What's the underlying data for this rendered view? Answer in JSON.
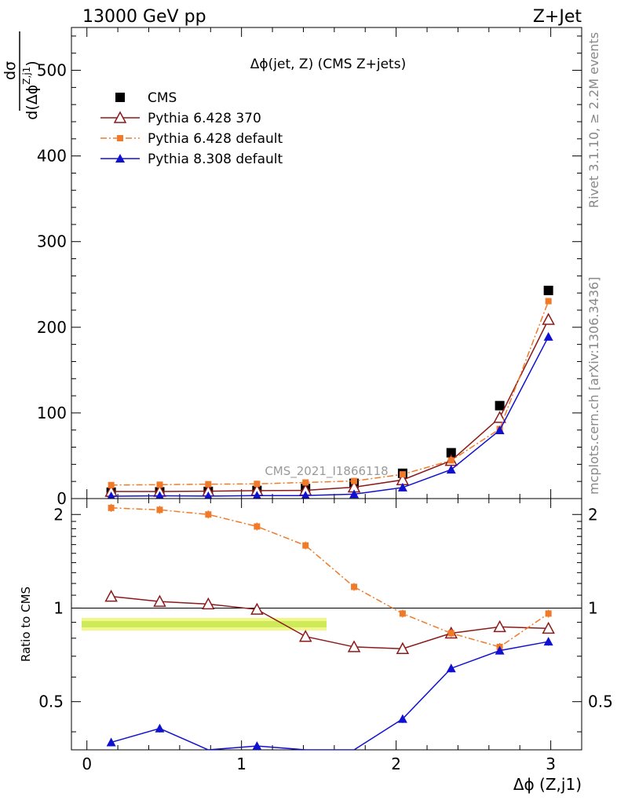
{
  "header": {
    "left": "13000 GeV pp",
    "right": "Z+Jet"
  },
  "side_labels": {
    "rivet": "Rivet 3.1.10, ≥ 2.2M events",
    "mcplots": "mcplots.cern.ch [arXiv:1306.3436]"
  },
  "watermark": "CMS_2021_I1866118",
  "chart_data": [
    {
      "type": "line",
      "panel": "main",
      "title": "Δϕ(jet, Z) (CMS Z+jets)",
      "ylabel_num": "dσ",
      "ylabel_den": "d(Δϕ",
      "ylabel_sup": "Z,j1",
      "ylabel_close": ")",
      "xlim": [
        -0.1,
        3.2
      ],
      "ylim": [
        0,
        550
      ],
      "yticks": [
        0,
        100,
        200,
        300,
        400,
        500
      ],
      "ytick_labels": [
        "0",
        "100",
        "200",
        "300",
        "400",
        "500"
      ],
      "grid": false,
      "legend_position": "top-left",
      "x": [
        0.157,
        0.471,
        0.785,
        1.1,
        1.414,
        1.728,
        2.042,
        2.356,
        2.67,
        2.985
      ],
      "series": [
        {
          "name": "CMS",
          "color": "#000000",
          "marker": "square",
          "values": [
            7.5,
            7.9,
            8.4,
            9.5,
            11.8,
            17.8,
            29.5,
            53.5,
            108.5,
            243
          ]
        },
        {
          "name": "Pythia 6.428 370",
          "color": "#8b1a1a",
          "marker": "open-triangle",
          "values": [
            8.2,
            8.3,
            8.6,
            9.3,
            9.6,
            13.3,
            21.8,
            44.3,
            94.5,
            209
          ]
        },
        {
          "name": "Pythia 6.428 default",
          "color": "#f07a28",
          "marker": "small-square",
          "values": [
            15.8,
            16.2,
            16.8,
            17.2,
            18.8,
            20.5,
            28.3,
            44.5,
            81.2,
            230.5
          ]
        },
        {
          "name": "Pythia 8.308 default",
          "color": "#1010d0",
          "marker": "triangle",
          "values": [
            2.8,
            3.2,
            2.9,
            3.4,
            3.5,
            5.2,
            12.9,
            33.8,
            79.8,
            189
          ]
        }
      ]
    },
    {
      "type": "line",
      "panel": "ratio",
      "ylabel": "Ratio to CMS",
      "xlabel": "Δϕ (Z,j1)",
      "xlim": [
        -0.1,
        3.2
      ],
      "ylim": [
        0.35,
        2.25
      ],
      "xticks": [
        0,
        1,
        2,
        3
      ],
      "xtick_labels": [
        "0",
        "1",
        "2",
        "3"
      ],
      "yticks": [
        0.5,
        1,
        2
      ],
      "ytick_labels": [
        "0.5",
        "1",
        "2"
      ],
      "reference_line": 1,
      "x": [
        0.157,
        0.471,
        0.785,
        1.1,
        1.414,
        1.728,
        2.042,
        2.356,
        2.67,
        2.985
      ],
      "series": [
        {
          "name": "Pythia 6.428 370",
          "color": "#8b1a1a",
          "marker": "open-triangle",
          "values": [
            1.09,
            1.05,
            1.03,
            0.99,
            0.81,
            0.75,
            0.74,
            0.83,
            0.87,
            0.86
          ]
        },
        {
          "name": "Pythia 6.428 default",
          "color": "#f07a28",
          "marker": "small-square",
          "values": [
            2.1,
            2.07,
            2.0,
            1.83,
            1.59,
            1.17,
            0.96,
            0.83,
            0.75,
            0.96
          ]
        },
        {
          "name": "Pythia 8.308 default",
          "color": "#1010d0",
          "marker": "triangle",
          "values": [
            0.37,
            0.41,
            0.32,
            0.36,
            0.28,
            0.3,
            0.44,
            0.64,
            0.73,
            0.78
          ]
        }
      ]
    }
  ]
}
